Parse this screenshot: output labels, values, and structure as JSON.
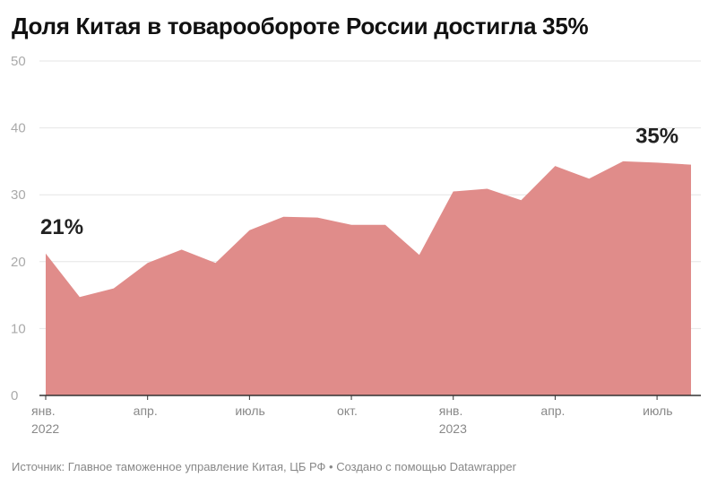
{
  "title": "Доля Китая в товарообороте России достигла 35%",
  "source": "Источник: Главное таможенное управление Китая, ЦБ РФ • Создано с помощью Datawrapper",
  "colors": {
    "area": "#e08c8a",
    "grid": "#e6e6e6",
    "axis": "#333333",
    "tick_text": "#aaaaaa",
    "xtick_text": "#888888",
    "label": "#222222"
  },
  "chart_data": {
    "type": "area",
    "title": "Доля Китая в товарообороте России достигла 35%",
    "xlabel": "",
    "ylabel": "",
    "ylim": [
      0,
      50
    ],
    "yticks": [
      "0",
      "10",
      "20",
      "30",
      "40",
      "50"
    ],
    "grid": true,
    "x": [
      "2022-01",
      "2022-02",
      "2022-03",
      "2022-04",
      "2022-05",
      "2022-06",
      "2022-07",
      "2022-08",
      "2022-09",
      "2022-10",
      "2022-11",
      "2022-12",
      "2023-01",
      "2023-02",
      "2023-03",
      "2023-04",
      "2023-05",
      "2023-06",
      "2023-07",
      "2023-08"
    ],
    "values": [
      21.2,
      14.7,
      16.0,
      19.8,
      21.8,
      19.8,
      24.7,
      26.7,
      26.6,
      25.5,
      25.5,
      21.0,
      30.5,
      30.9,
      29.2,
      34.3,
      32.4,
      35.0,
      34.8,
      34.5
    ],
    "xticks": [
      {
        "x": "2022-01",
        "label": "янв.",
        "year": "2022"
      },
      {
        "x": "2022-04",
        "label": "апр.",
        "year": ""
      },
      {
        "x": "2022-07",
        "label": "июль",
        "year": ""
      },
      {
        "x": "2022-10",
        "label": "окт.",
        "year": ""
      },
      {
        "x": "2023-01",
        "label": "янв.",
        "year": "2023"
      },
      {
        "x": "2023-04",
        "label": "апр.",
        "year": ""
      },
      {
        "x": "2023-07",
        "label": "июль",
        "year": ""
      }
    ],
    "annotations": [
      {
        "x": "2022-01",
        "text": "21%"
      },
      {
        "x": "2023-07",
        "text": "35%"
      }
    ]
  }
}
